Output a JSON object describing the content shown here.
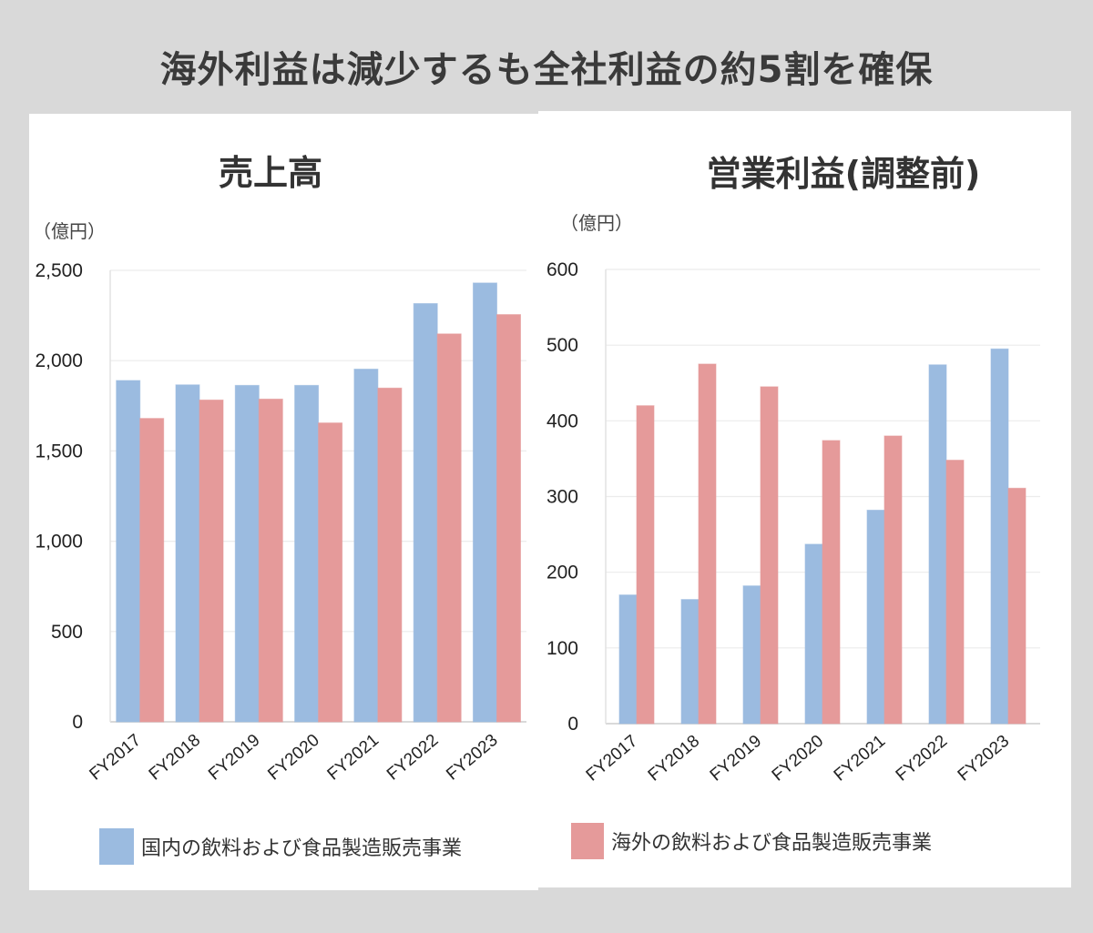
{
  "page": {
    "title": "海外利益は減少するも全社利益の約5割を確保"
  },
  "colors": {
    "domestic": "#9bbbe0",
    "overseas": "#e59a9a",
    "background": "#d9d9d9",
    "panel": "#ffffff"
  },
  "chart_data": [
    {
      "type": "bar",
      "title": "売上高",
      "unit_label": "（億円）",
      "xlabel": "",
      "ylabel": "億円",
      "categories": [
        "FY2017",
        "FY2018",
        "FY2019",
        "FY2020",
        "FY2021",
        "FY2022",
        "FY2023"
      ],
      "series": [
        {
          "name": "国内の飲料および食品製造販売事業",
          "color_key": "domestic",
          "values": [
            1890,
            1866,
            1863,
            1863,
            1953,
            2316,
            2430
          ]
        },
        {
          "name": "海外の飲料および食品製造販売事業",
          "color_key": "overseas",
          "values": [
            1680,
            1782,
            1787,
            1655,
            1848,
            2148,
            2255
          ]
        }
      ],
      "ylim": [
        0,
        2500
      ],
      "yticks": [
        0,
        500,
        1000,
        1500,
        2000,
        2500
      ],
      "ytick_labels": [
        "0",
        "500",
        "1,000",
        "1,500",
        "2,000",
        "2,500"
      ],
      "grid": true,
      "legend": {
        "placement": "bottom",
        "entries": [
          "国内の飲料および食品製造販売事業"
        ]
      }
    },
    {
      "type": "bar",
      "title": "営業利益(調整前)",
      "unit_label": "（億円）",
      "xlabel": "",
      "ylabel": "億円",
      "categories": [
        "FY2017",
        "FY2018",
        "FY2019",
        "FY2020",
        "FY2021",
        "FY2022",
        "FY2023"
      ],
      "series": [
        {
          "name": "国内の飲料および食品製造販売事業",
          "color_key": "domestic",
          "values": [
            170,
            164,
            182,
            237,
            282,
            474,
            495
          ]
        },
        {
          "name": "海外の飲料および食品製造販売事業",
          "color_key": "overseas",
          "values": [
            420,
            475,
            445,
            374,
            380,
            348,
            311
          ]
        }
      ],
      "ylim": [
        0,
        600
      ],
      "yticks": [
        0,
        100,
        200,
        300,
        400,
        500,
        600
      ],
      "ytick_labels": [
        "0",
        "100",
        "200",
        "300",
        "400",
        "500",
        "600"
      ],
      "grid": true,
      "legend": {
        "placement": "bottom",
        "entries": [
          "海外の飲料および食品製造販売事業"
        ]
      }
    }
  ]
}
